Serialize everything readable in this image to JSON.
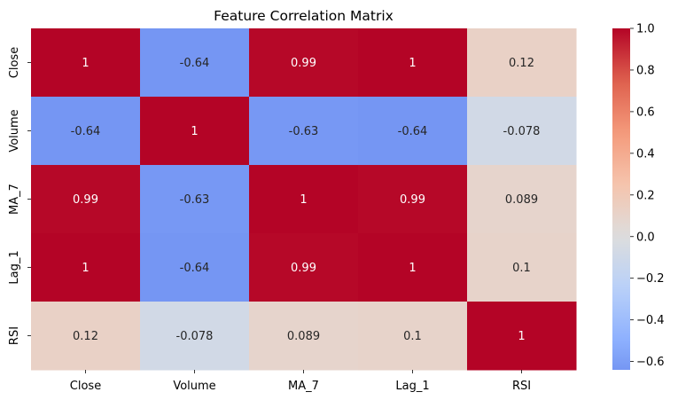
{
  "chart_data": {
    "type": "heatmap",
    "title": "Feature Correlation Matrix",
    "xlabel": "",
    "ylabel": "",
    "x_categories": [
      "Close",
      "Volume",
      "MA_7",
      "Lag_1",
      "RSI"
    ],
    "y_categories": [
      "Close",
      "Volume",
      "MA_7",
      "Lag_1",
      "RSI"
    ],
    "values": [
      [
        1,
        -0.64,
        0.99,
        1,
        0.12
      ],
      [
        -0.64,
        1,
        -0.63,
        -0.64,
        -0.078
      ],
      [
        0.99,
        -0.63,
        1,
        0.99,
        0.089
      ],
      [
        1,
        -0.64,
        0.99,
        1,
        0.1
      ],
      [
        0.12,
        -0.078,
        0.089,
        0.1,
        1
      ]
    ],
    "labels": [
      [
        "1",
        "-0.64",
        "0.99",
        "1",
        "0.12"
      ],
      [
        "-0.64",
        "1",
        "-0.63",
        "-0.64",
        "-0.078"
      ],
      [
        "0.99",
        "-0.63",
        "1",
        "0.99",
        "0.089"
      ],
      [
        "1",
        "-0.64",
        "0.99",
        "1",
        "0.1"
      ],
      [
        "0.12",
        "-0.078",
        "0.089",
        "0.1",
        "1"
      ]
    ],
    "colormap": "coolwarm",
    "center": 0,
    "vmin": -0.64,
    "vmax": 1,
    "colorbar": {
      "ticks": [
        1.0,
        0.8,
        0.6,
        0.4,
        0.2,
        0.0,
        -0.2,
        -0.4,
        -0.6
      ],
      "tick_labels": [
        "1.0",
        "0.8",
        "0.6",
        "0.4",
        "0.2",
        "0.0",
        "−0.2",
        "−0.4",
        "−0.6"
      ],
      "placement": "right"
    },
    "grid": false
  }
}
